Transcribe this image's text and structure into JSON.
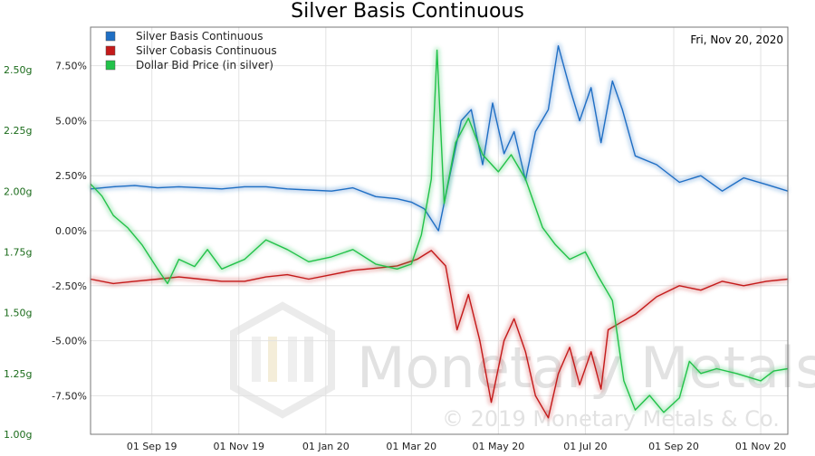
{
  "chart_data": {
    "type": "line",
    "title": "Silver Basis Continuous",
    "date_label": "Fri, Nov 20, 2020",
    "watermark": {
      "brand": "Monetary Metals",
      "copyright": "© 2019 Monetary Metals & Co."
    },
    "x_ticks": [
      "01 Sep 19",
      "01 Nov 19",
      "01 Jan 20",
      "01 Mar 20",
      "01 May 20",
      "01 Jul 20",
      "01 Sep 20",
      "01 Nov 20"
    ],
    "x_range": [
      "2019-07-20",
      "2020-11-20"
    ],
    "y_right": {
      "range": [
        -9.25,
        9.25
      ],
      "ticks": [
        "7.50%",
        "5.00%",
        "2.50%",
        "0.00%",
        "-2.50%",
        "-5.00%",
        "-7.50%"
      ],
      "tick_values": [
        7.5,
        5.0,
        2.5,
        0.0,
        -2.5,
        -5.0,
        -7.5
      ]
    },
    "y_left": {
      "range": [
        1.0,
        2.675
      ],
      "ticks": [
        "2.50g",
        "2.25g",
        "2.00g",
        "1.75g",
        "1.50g",
        "1.25g",
        "1.00g"
      ],
      "tick_values": [
        2.5,
        2.25,
        2.0,
        1.75,
        1.5,
        1.25,
        1.0
      ]
    },
    "legend_position": "top-left",
    "grid": true,
    "series": [
      {
        "name": "Silver Basis Continuous",
        "color": "#1f6fc4",
        "axis": "right",
        "points": [
          [
            "2019-07-20",
            1.9
          ],
          [
            "2019-08-05",
            2.0
          ],
          [
            "2019-08-20",
            2.05
          ],
          [
            "2019-09-05",
            1.95
          ],
          [
            "2019-09-20",
            2.0
          ],
          [
            "2019-10-05",
            1.95
          ],
          [
            "2019-10-20",
            1.9
          ],
          [
            "2019-11-05",
            2.0
          ],
          [
            "2019-11-20",
            2.0
          ],
          [
            "2019-12-05",
            1.9
          ],
          [
            "2019-12-20",
            1.85
          ],
          [
            "2020-01-05",
            1.8
          ],
          [
            "2020-01-20",
            1.95
          ],
          [
            "2020-02-05",
            1.55
          ],
          [
            "2020-02-20",
            1.45
          ],
          [
            "2020-03-01",
            1.3
          ],
          [
            "2020-03-10",
            1.0
          ],
          [
            "2020-03-20",
            0.0
          ],
          [
            "2020-03-27",
            2.2
          ],
          [
            "2020-04-05",
            5.0
          ],
          [
            "2020-04-12",
            5.5
          ],
          [
            "2020-04-20",
            3.0
          ],
          [
            "2020-04-27",
            5.8
          ],
          [
            "2020-05-05",
            3.5
          ],
          [
            "2020-05-12",
            4.5
          ],
          [
            "2020-05-20",
            2.3
          ],
          [
            "2020-05-27",
            4.5
          ],
          [
            "2020-06-05",
            5.5
          ],
          [
            "2020-06-12",
            8.4
          ],
          [
            "2020-06-20",
            6.5
          ],
          [
            "2020-06-27",
            5.0
          ],
          [
            "2020-07-05",
            6.5
          ],
          [
            "2020-07-12",
            4.0
          ],
          [
            "2020-07-20",
            6.8
          ],
          [
            "2020-07-27",
            5.5
          ],
          [
            "2020-08-05",
            3.4
          ],
          [
            "2020-08-20",
            3.0
          ],
          [
            "2020-09-05",
            2.2
          ],
          [
            "2020-09-20",
            2.5
          ],
          [
            "2020-10-05",
            1.8
          ],
          [
            "2020-10-20",
            2.4
          ],
          [
            "2020-11-05",
            2.1
          ],
          [
            "2020-11-20",
            1.8
          ]
        ]
      },
      {
        "name": "Silver Cobasis Continuous",
        "color": "#c41a1a",
        "axis": "right",
        "points": [
          [
            "2019-07-20",
            -2.2
          ],
          [
            "2019-08-05",
            -2.4
          ],
          [
            "2019-08-20",
            -2.3
          ],
          [
            "2019-09-05",
            -2.2
          ],
          [
            "2019-09-20",
            -2.1
          ],
          [
            "2019-10-05",
            -2.2
          ],
          [
            "2019-10-20",
            -2.3
          ],
          [
            "2019-11-05",
            -2.3
          ],
          [
            "2019-11-20",
            -2.1
          ],
          [
            "2019-12-05",
            -2.0
          ],
          [
            "2019-12-20",
            -2.2
          ],
          [
            "2020-01-05",
            -2.0
          ],
          [
            "2020-01-20",
            -1.8
          ],
          [
            "2020-02-05",
            -1.7
          ],
          [
            "2020-02-20",
            -1.6
          ],
          [
            "2020-03-05",
            -1.3
          ],
          [
            "2020-03-15",
            -0.9
          ],
          [
            "2020-03-25",
            -1.6
          ],
          [
            "2020-04-02",
            -4.5
          ],
          [
            "2020-04-10",
            -2.9
          ],
          [
            "2020-04-18",
            -5.0
          ],
          [
            "2020-04-26",
            -7.8
          ],
          [
            "2020-05-05",
            -5.0
          ],
          [
            "2020-05-12",
            -4.0
          ],
          [
            "2020-05-20",
            -5.5
          ],
          [
            "2020-05-27",
            -7.5
          ],
          [
            "2020-06-05",
            -8.5
          ],
          [
            "2020-06-12",
            -6.5
          ],
          [
            "2020-06-20",
            -5.3
          ],
          [
            "2020-06-27",
            -7.0
          ],
          [
            "2020-07-05",
            -5.5
          ],
          [
            "2020-07-12",
            -7.2
          ],
          [
            "2020-07-17",
            -4.5
          ],
          [
            "2020-07-25",
            -4.2
          ],
          [
            "2020-08-05",
            -3.8
          ],
          [
            "2020-08-20",
            -3.0
          ],
          [
            "2020-09-05",
            -2.5
          ],
          [
            "2020-09-20",
            -2.7
          ],
          [
            "2020-10-05",
            -2.3
          ],
          [
            "2020-10-20",
            -2.5
          ],
          [
            "2020-11-05",
            -2.3
          ],
          [
            "2020-11-20",
            -2.2
          ]
        ]
      },
      {
        "name": "Dollar Bid Price (in silver)",
        "color": "#22c24a",
        "axis": "left",
        "points": [
          [
            "2019-07-20",
            2.03
          ],
          [
            "2019-07-28",
            1.98
          ],
          [
            "2019-08-05",
            1.9
          ],
          [
            "2019-08-15",
            1.85
          ],
          [
            "2019-08-25",
            1.78
          ],
          [
            "2019-09-05",
            1.68
          ],
          [
            "2019-09-12",
            1.62
          ],
          [
            "2019-09-20",
            1.72
          ],
          [
            "2019-10-01",
            1.69
          ],
          [
            "2019-10-10",
            1.76
          ],
          [
            "2019-10-20",
            1.68
          ],
          [
            "2019-11-05",
            1.72
          ],
          [
            "2019-11-20",
            1.8
          ],
          [
            "2019-12-05",
            1.76
          ],
          [
            "2019-12-20",
            1.71
          ],
          [
            "2020-01-05",
            1.73
          ],
          [
            "2020-01-20",
            1.76
          ],
          [
            "2020-02-05",
            1.7
          ],
          [
            "2020-02-20",
            1.68
          ],
          [
            "2020-03-01",
            1.7
          ],
          [
            "2020-03-08",
            1.82
          ],
          [
            "2020-03-15",
            2.05
          ],
          [
            "2020-03-19",
            2.58
          ],
          [
            "2020-03-24",
            1.95
          ],
          [
            "2020-04-01",
            2.2
          ],
          [
            "2020-04-10",
            2.3
          ],
          [
            "2020-04-20",
            2.15
          ],
          [
            "2020-05-01",
            2.08
          ],
          [
            "2020-05-10",
            2.15
          ],
          [
            "2020-05-20",
            2.05
          ],
          [
            "2020-06-01",
            1.85
          ],
          [
            "2020-06-10",
            1.78
          ],
          [
            "2020-06-20",
            1.72
          ],
          [
            "2020-07-01",
            1.75
          ],
          [
            "2020-07-10",
            1.65
          ],
          [
            "2020-07-20",
            1.55
          ],
          [
            "2020-07-28",
            1.22
          ],
          [
            "2020-08-05",
            1.1
          ],
          [
            "2020-08-15",
            1.16
          ],
          [
            "2020-08-25",
            1.09
          ],
          [
            "2020-09-05",
            1.15
          ],
          [
            "2020-09-12",
            1.3
          ],
          [
            "2020-09-20",
            1.25
          ],
          [
            "2020-10-01",
            1.27
          ],
          [
            "2020-10-15",
            1.25
          ],
          [
            "2020-11-01",
            1.22
          ],
          [
            "2020-11-10",
            1.26
          ],
          [
            "2020-11-20",
            1.27
          ]
        ]
      }
    ]
  }
}
